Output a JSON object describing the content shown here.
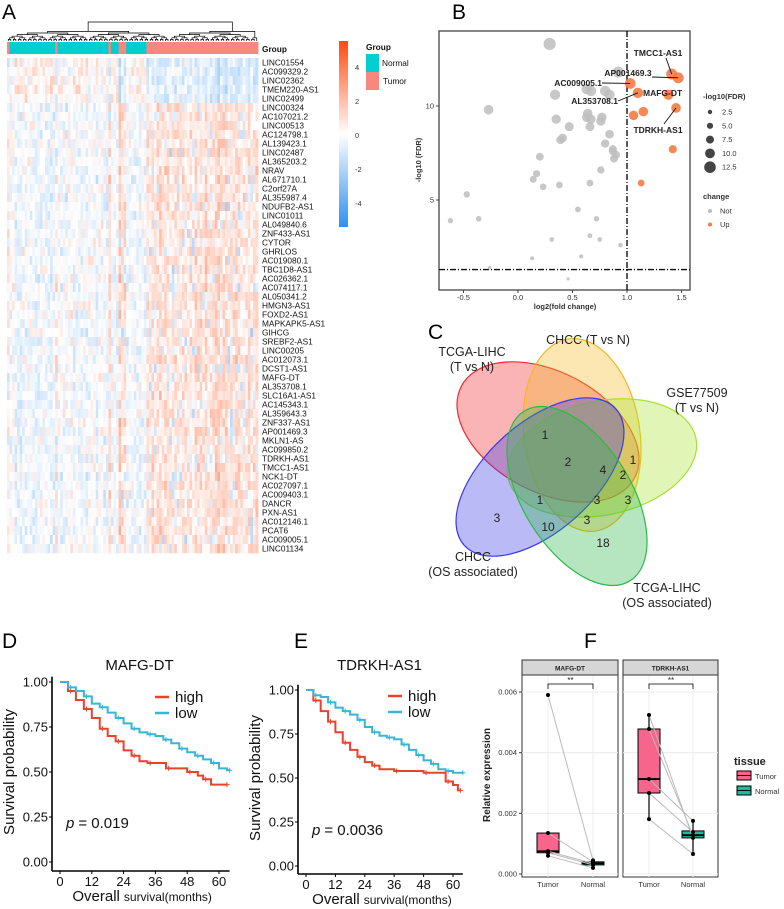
{
  "panel_labels": {
    "a": "A",
    "b": "B",
    "c": "C",
    "d": "D",
    "e": "E",
    "f": "F"
  },
  "colors": {
    "normal": "#00CED1",
    "tumor": "#F8877F",
    "hm_low": "#2E8FF0",
    "hm_high": "#FF4A10",
    "up": "#F47C44",
    "not": "#BDBDBD",
    "high": "#E8432A",
    "low": "#39B5D6",
    "box_tumor": "#F7658C",
    "box_normal": "#17BE9A"
  },
  "chart_data": {
    "heatmap": {
      "type": "heatmap",
      "annotation_title": "Group",
      "legend_title": "Group",
      "legend_items": [
        "Normal",
        "Tumor"
      ],
      "colorbar_ticks": [
        4,
        2,
        0,
        -2,
        -4
      ],
      "color_range": [
        -5.4,
        5.5
      ],
      "column_groups": [
        [
          "Tumor",
          1
        ],
        [
          "Normal",
          18
        ],
        [
          "Tumor",
          1
        ],
        [
          "Normal",
          20
        ],
        [
          "Tumor",
          1
        ],
        [
          "Normal",
          3
        ],
        [
          "Tumor",
          3
        ],
        [
          "Normal",
          8
        ],
        [
          "Tumor",
          44
        ]
      ],
      "genes": [
        "LINC01554",
        "AC099329.2",
        "LINC02362",
        "TMEM220-AS1",
        "LINC02499",
        "LINC00324",
        "AC107021.2",
        "LINC00513",
        "AC124798.1",
        "AL139423.1",
        "LINC02487",
        "AL365203.2",
        "NRAV",
        "AL671710.1",
        "C2orf27A",
        "AL355987.4",
        "NDUFB2-AS1",
        "LINC01011",
        "AL049840.6",
        "ZNF433-AS1",
        "CYTOR",
        "GHRLOS",
        "AC019080.1",
        "TBC1D8-AS1",
        "AC026362.1",
        "AC074117.1",
        "AL050341.2",
        "HMGN3-AS1",
        "FOXD2-AS1",
        "MAPKAPK5-AS1",
        "GIHCG",
        "SREBF2-AS1",
        "LINC00205",
        "AC012073.1",
        "DCST1-AS1",
        "MAFG-DT",
        "AL353708.1",
        "SLC16A1-AS1",
        "AC145343.1",
        "AL359643.3",
        "ZNF337-AS1",
        "AP001469.3",
        "MKLN1-AS",
        "AC099850.2",
        "TDRKH-AS1",
        "TMCC1-AS1",
        "NCK1-DT",
        "AC027097.1",
        "AC009403.1",
        "DANCR",
        "PXN-AS1",
        "AC012146.1",
        "PCAT6",
        "AC009005.1",
        "LINC01134"
      ],
      "down_in_tumor_count": 5
    },
    "volcano": {
      "type": "scatter",
      "xlabel": "log2(fold change)",
      "ylabel": "-log10 (FDR)",
      "xticks": [
        -0.5,
        0.0,
        0.5,
        1.0,
        1.5
      ],
      "xtick_labels": [
        "-0.5",
        "0.0",
        "0.5",
        "1.0",
        "1.5"
      ],
      "yticks": [
        5,
        10
      ],
      "ytick_labels": [
        "5",
        "10"
      ],
      "xlim": [
        -0.7,
        1.58
      ],
      "ylim": [
        0.2,
        14.1
      ],
      "vline": 1.0,
      "hline": 1.3,
      "size_legend_title": "-log10(FDR)",
      "size_legend": [
        "2.5",
        "5.0",
        "7.5",
        "10.0",
        "12.5"
      ],
      "size_legend_values": [
        2.5,
        5,
        7.5,
        10,
        12.5
      ],
      "change_legend_title": "change",
      "change_legend": [
        "Not",
        "Up"
      ],
      "points_not": [
        [
          0.29,
          13.3
        ],
        [
          0.92,
          11.8
        ],
        [
          0.34,
          10.6
        ],
        [
          0.63,
          10.9
        ],
        [
          0.67,
          10.8
        ],
        [
          0.8,
          10.8
        ],
        [
          0.84,
          10.6
        ],
        [
          -0.27,
          9.8
        ],
        [
          0.64,
          9.6
        ],
        [
          0.63,
          9.4
        ],
        [
          0.67,
          9.3
        ],
        [
          0.77,
          9.4
        ],
        [
          0.76,
          9.2
        ],
        [
          0.35,
          9.3
        ],
        [
          0.47,
          8.9
        ],
        [
          0.66,
          8.9
        ],
        [
          0.84,
          8.5
        ],
        [
          0.41,
          8.3
        ],
        [
          0.39,
          8.2
        ],
        [
          0.8,
          8.0
        ],
        [
          0.87,
          7.7
        ],
        [
          0.87,
          7.6
        ],
        [
          0.9,
          7.4
        ],
        [
          0.88,
          7.2
        ],
        [
          0.2,
          7.3
        ],
        [
          0.76,
          6.6
        ],
        [
          0.17,
          6.4
        ],
        [
          0.14,
          6.1
        ],
        [
          0.23,
          5.7
        ],
        [
          0.38,
          5.8
        ],
        [
          0.66,
          5.9
        ],
        [
          -0.47,
          5.3
        ],
        [
          0.55,
          4.5
        ],
        [
          -0.62,
          3.9
        ],
        [
          -0.36,
          4.0
        ],
        [
          0.72,
          4.0
        ],
        [
          0.31,
          2.9
        ],
        [
          0.66,
          3.1
        ],
        [
          0.75,
          2.9
        ],
        [
          0.94,
          2.6
        ],
        [
          0.13,
          1.9
        ],
        [
          0.58,
          2.0
        ],
        [
          -0.26,
          1.4
        ],
        [
          0.46,
          0.8
        ]
      ],
      "points_up": [
        [
          1.03,
          11.2
        ],
        [
          1.1,
          10.7
        ],
        [
          1.38,
          10.6
        ],
        [
          1.41,
          11.7
        ],
        [
          1.47,
          11.5
        ],
        [
          1.45,
          9.9
        ],
        [
          1.06,
          9.5
        ],
        [
          1.15,
          9.7
        ],
        [
          1.42,
          7.7
        ],
        [
          1.13,
          5.9
        ]
      ],
      "annotations": [
        {
          "label": "TMCC1-AS1",
          "x": 1.41,
          "y": 11.7
        },
        {
          "label": "AP001469.3",
          "x": 1.47,
          "y": 11.5
        },
        {
          "label": "AC009005.1",
          "x": 1.03,
          "y": 11.2
        },
        {
          "label": "MAFG-DT",
          "x": 1.38,
          "y": 10.6
        },
        {
          "label": "AL353708.1",
          "x": 1.1,
          "y": 10.7
        },
        {
          "label": "TDRKH-AS1",
          "x": 1.45,
          "y": 9.9
        }
      ]
    },
    "venn": {
      "type": "venn",
      "sets": [
        {
          "name": "TCGA-LIHC",
          "sub": "(T vs N)",
          "color": "#F0282E"
        },
        {
          "name": "CHCC (T vs N)",
          "sub": "",
          "color": "#F7B620"
        },
        {
          "name": "GSE77509",
          "sub": "(T vs N)",
          "color": "#A6E22E"
        },
        {
          "name": "CHCC",
          "sub": "(OS associated)",
          "color": "#3A3AE8"
        },
        {
          "name": "TCGA-LIHC",
          "sub": "(OS associated)",
          "color": "#2FB84A"
        }
      ],
      "region_counts": [
        "1",
        "2",
        "4",
        "1",
        "2",
        "1",
        "3",
        "3",
        "3",
        "10",
        "3",
        "18"
      ]
    },
    "km": [
      {
        "type": "line",
        "title": "MAFG-DT",
        "xlabel_main": "Overall",
        "xlabel_rest": "survival(months)",
        "ylabel": "Survival probability",
        "xticks": [
          "0",
          "12",
          "24",
          "36",
          "48",
          "60"
        ],
        "yticks": [
          "0.00",
          "0.25",
          "0.50",
          "0.75",
          "1.00"
        ],
        "legend": [
          "high",
          "low"
        ],
        "p_label": "p",
        "p_value": "= 0.019",
        "series": [
          {
            "name": "high",
            "points": [
              [
                0,
                1
              ],
              [
                3,
                0.95
              ],
              [
                6,
                0.9
              ],
              [
                9,
                0.85
              ],
              [
                12,
                0.8
              ],
              [
                15,
                0.74
              ],
              [
                18,
                0.7
              ],
              [
                21,
                0.67
              ],
              [
                24,
                0.62
              ],
              [
                27,
                0.59
              ],
              [
                30,
                0.56
              ],
              [
                33,
                0.55
              ],
              [
                36,
                0.55
              ],
              [
                40,
                0.52
              ],
              [
                44,
                0.52
              ],
              [
                48,
                0.5
              ],
              [
                52,
                0.48
              ],
              [
                54,
                0.46
              ],
              [
                57,
                0.43
              ],
              [
                62,
                0.43
              ]
            ]
          },
          {
            "name": "low",
            "points": [
              [
                0,
                1
              ],
              [
                3,
                0.97
              ],
              [
                6,
                0.95
              ],
              [
                9,
                0.92
              ],
              [
                12,
                0.88
              ],
              [
                15,
                0.86
              ],
              [
                18,
                0.83
              ],
              [
                21,
                0.8
              ],
              [
                24,
                0.77
              ],
              [
                27,
                0.74
              ],
              [
                30,
                0.72
              ],
              [
                33,
                0.71
              ],
              [
                36,
                0.7
              ],
              [
                39,
                0.68
              ],
              [
                42,
                0.66
              ],
              [
                45,
                0.63
              ],
              [
                48,
                0.61
              ],
              [
                51,
                0.59
              ],
              [
                54,
                0.57
              ],
              [
                57,
                0.55
              ],
              [
                60,
                0.52
              ],
              [
                63,
                0.51
              ]
            ]
          }
        ]
      },
      {
        "type": "line",
        "title": "TDRKH-AS1",
        "xlabel_main": "Overall",
        "xlabel_rest": "survival(months)",
        "ylabel": "Survival probability",
        "xticks": [
          "0",
          "12",
          "24",
          "36",
          "48",
          "60"
        ],
        "yticks": [
          "0.00",
          "0.25",
          "0.50",
          "0.75",
          "1.00"
        ],
        "legend": [
          "high",
          "low"
        ],
        "p_label": "p",
        "p_value": "= 0.0036",
        "series": [
          {
            "name": "high",
            "points": [
              [
                0,
                1
              ],
              [
                3,
                0.94
              ],
              [
                6,
                0.88
              ],
              [
                9,
                0.82
              ],
              [
                12,
                0.76
              ],
              [
                15,
                0.7
              ],
              [
                18,
                0.66
              ],
              [
                21,
                0.62
              ],
              [
                24,
                0.59
              ],
              [
                27,
                0.57
              ],
              [
                30,
                0.55
              ],
              [
                36,
                0.54
              ],
              [
                42,
                0.54
              ],
              [
                48,
                0.53
              ],
              [
                56,
                0.53
              ],
              [
                57,
                0.48
              ],
              [
                60,
                0.46
              ],
              [
                62,
                0.43
              ]
            ]
          },
          {
            "name": "low",
            "points": [
              [
                0,
                1
              ],
              [
                3,
                0.97
              ],
              [
                6,
                0.96
              ],
              [
                9,
                0.93
              ],
              [
                12,
                0.9
              ],
              [
                15,
                0.88
              ],
              [
                18,
                0.86
              ],
              [
                21,
                0.83
              ],
              [
                24,
                0.79
              ],
              [
                27,
                0.76
              ],
              [
                30,
                0.74
              ],
              [
                33,
                0.73
              ],
              [
                36,
                0.72
              ],
              [
                39,
                0.69
              ],
              [
                42,
                0.66
              ],
              [
                45,
                0.63
              ],
              [
                48,
                0.6
              ],
              [
                51,
                0.58
              ],
              [
                54,
                0.55
              ],
              [
                57,
                0.54
              ],
              [
                60,
                0.53
              ],
              [
                63,
                0.53
              ]
            ]
          }
        ]
      }
    ],
    "boxplot": {
      "type": "box",
      "ylabel": "Relative expression",
      "yticks": [
        "0.000",
        "0.002",
        "0.004",
        "0.006"
      ],
      "ytick_values": [
        0,
        0.002,
        0.004,
        0.006
      ],
      "ylim": [
        -8e-05,
        0.0066
      ],
      "categories": [
        "Tumor",
        "Normal"
      ],
      "legend_title": "tissue",
      "legend": [
        "Tumor",
        "Normal"
      ],
      "panels": [
        {
          "title": "MAFG-DT",
          "signif": "**",
          "tumor": [
            0.0059,
            0.00135,
            0.00075,
            0.0007,
            0.0006
          ],
          "normal": [
            0.00045,
            0.0004,
            0.00035,
            0.0003,
            0.0002
          ],
          "tumor_box": [
            0.0006,
            0.0007,
            0.00075,
            0.00135,
            0.00135
          ],
          "normal_box": [
            0.0002,
            0.0003,
            0.00035,
            0.0004,
            0.00045
          ]
        },
        {
          "title": "TDRKH-AS1",
          "signif": "**",
          "tumor": [
            0.00524,
            0.00478,
            0.00313,
            0.00267,
            0.00181
          ],
          "normal": [
            0.00119,
            0.00128,
            0.00175,
            0.00138,
            0.00066
          ],
          "tumor_box": [
            0.00181,
            0.00267,
            0.00313,
            0.00478,
            0.00524
          ],
          "normal_box": [
            0.00066,
            0.00119,
            0.00128,
            0.00142,
            0.00175
          ]
        }
      ]
    }
  }
}
